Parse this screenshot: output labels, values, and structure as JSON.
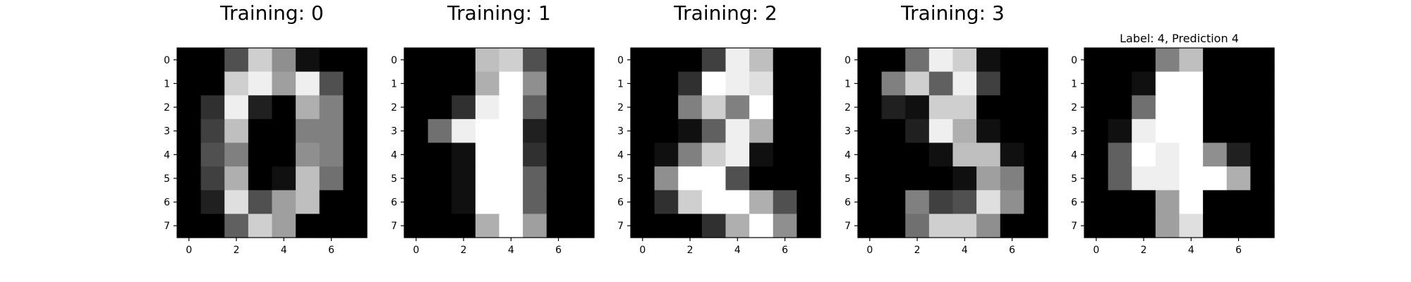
{
  "chart_data": [
    {
      "type": "heatmap",
      "title": "Training: 0",
      "colormap": "gray",
      "value_range": [
        0,
        16
      ],
      "x_ticks": [
        0,
        2,
        4,
        6
      ],
      "y_ticks": [
        0,
        1,
        2,
        3,
        4,
        5,
        6,
        7
      ],
      "values": [
        [
          0,
          0,
          5,
          13,
          9,
          1,
          0,
          0
        ],
        [
          0,
          0,
          13,
          15,
          10,
          15,
          5,
          0
        ],
        [
          0,
          3,
          15,
          2,
          0,
          11,
          8,
          0
        ],
        [
          0,
          4,
          12,
          0,
          0,
          8,
          8,
          0
        ],
        [
          0,
          5,
          8,
          0,
          0,
          9,
          8,
          0
        ],
        [
          0,
          4,
          11,
          0,
          1,
          12,
          7,
          0
        ],
        [
          0,
          2,
          14,
          5,
          10,
          12,
          0,
          0
        ],
        [
          0,
          0,
          6,
          13,
          10,
          0,
          0,
          0
        ]
      ]
    },
    {
      "type": "heatmap",
      "title": "Training: 1",
      "colormap": "gray",
      "value_range": [
        0,
        16
      ],
      "x_ticks": [
        0,
        2,
        4,
        6
      ],
      "y_ticks": [
        0,
        1,
        2,
        3,
        4,
        5,
        6,
        7
      ],
      "values": [
        [
          0,
          0,
          0,
          12,
          13,
          5,
          0,
          0
        ],
        [
          0,
          0,
          0,
          11,
          16,
          9,
          0,
          0
        ],
        [
          0,
          0,
          3,
          15,
          16,
          6,
          0,
          0
        ],
        [
          0,
          7,
          15,
          16,
          16,
          2,
          0,
          0
        ],
        [
          0,
          0,
          1,
          16,
          16,
          3,
          0,
          0
        ],
        [
          0,
          0,
          1,
          16,
          16,
          6,
          0,
          0
        ],
        [
          0,
          0,
          1,
          16,
          16,
          6,
          0,
          0
        ],
        [
          0,
          0,
          0,
          11,
          16,
          10,
          0,
          0
        ]
      ]
    },
    {
      "type": "heatmap",
      "title": "Training: 2",
      "colormap": "gray",
      "value_range": [
        0,
        16
      ],
      "x_ticks": [
        0,
        2,
        4,
        6
      ],
      "y_ticks": [
        0,
        1,
        2,
        3,
        4,
        5,
        6,
        7
      ],
      "values": [
        [
          0,
          0,
          0,
          4,
          15,
          12,
          0,
          0
        ],
        [
          0,
          0,
          3,
          16,
          15,
          14,
          0,
          0
        ],
        [
          0,
          0,
          8,
          13,
          8,
          16,
          0,
          0
        ],
        [
          0,
          0,
          1,
          6,
          15,
          11,
          0,
          0
        ],
        [
          0,
          1,
          8,
          13,
          15,
          1,
          0,
          0
        ],
        [
          0,
          9,
          16,
          16,
          5,
          0,
          0,
          0
        ],
        [
          0,
          3,
          13,
          16,
          16,
          11,
          5,
          0
        ],
        [
          0,
          0,
          0,
          3,
          11,
          16,
          9,
          0
        ]
      ]
    },
    {
      "type": "heatmap",
      "title": "Training: 3",
      "colormap": "gray",
      "value_range": [
        0,
        16
      ],
      "x_ticks": [
        0,
        2,
        4,
        6
      ],
      "y_ticks": [
        0,
        1,
        2,
        3,
        4,
        5,
        6,
        7
      ],
      "values": [
        [
          0,
          0,
          7,
          15,
          13,
          1,
          0,
          0
        ],
        [
          0,
          8,
          13,
          6,
          15,
          4,
          0,
          0
        ],
        [
          0,
          2,
          1,
          13,
          13,
          0,
          0,
          0
        ],
        [
          0,
          0,
          2,
          15,
          11,
          1,
          0,
          0
        ],
        [
          0,
          0,
          0,
          1,
          12,
          12,
          1,
          0
        ],
        [
          0,
          0,
          0,
          0,
          1,
          10,
          8,
          0
        ],
        [
          0,
          0,
          8,
          4,
          5,
          14,
          9,
          0
        ],
        [
          0,
          0,
          7,
          13,
          13,
          9,
          0,
          0
        ]
      ]
    },
    {
      "type": "heatmap",
      "title": "Label: 4, Prediction 4",
      "colormap": "gray",
      "value_range": [
        0,
        16
      ],
      "x_ticks": [
        0,
        2,
        4,
        6
      ],
      "y_ticks": [
        0,
        1,
        2,
        3,
        4,
        5,
        6,
        7
      ],
      "values": [
        [
          0,
          0,
          0,
          8,
          12,
          0,
          0,
          0
        ],
        [
          0,
          0,
          1,
          16,
          16,
          0,
          0,
          0
        ],
        [
          0,
          0,
          7,
          16,
          16,
          0,
          0,
          0
        ],
        [
          0,
          1,
          15,
          16,
          16,
          0,
          0,
          0
        ],
        [
          0,
          6,
          16,
          15,
          16,
          9,
          2,
          0
        ],
        [
          0,
          6,
          15,
          15,
          16,
          16,
          11,
          0
        ],
        [
          0,
          0,
          0,
          10,
          16,
          0,
          0,
          0
        ],
        [
          0,
          0,
          0,
          10,
          14,
          0,
          0,
          0
        ]
      ]
    }
  ]
}
